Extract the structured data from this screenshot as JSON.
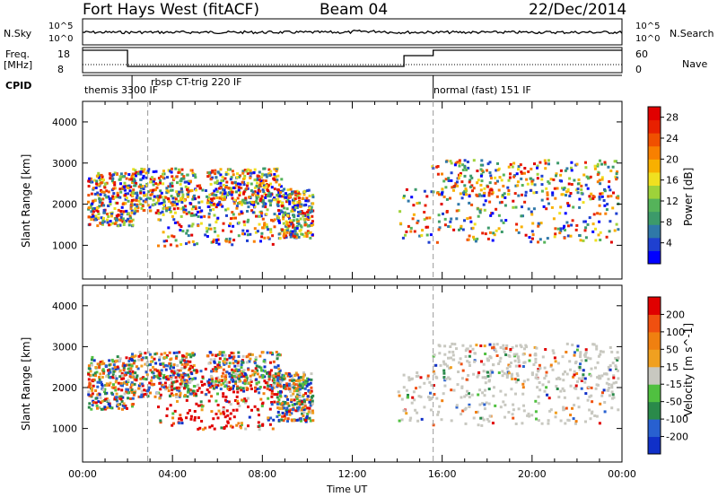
{
  "header": {
    "station": "Fort Hays West (fitACF)",
    "beam": "Beam 04",
    "date": "22/Dec/2014"
  },
  "panels": {
    "nsky_label": "N.Sky",
    "nsearch_label": "N.Search",
    "freq_label_line1": "Freq.",
    "freq_label_line2": "[MHz]",
    "nave_label": "Nave",
    "cpid_label": "CPID",
    "nsky_ticks": [
      "10^5",
      "10^0"
    ],
    "nsearch_ticks": [
      "10^5",
      "10^0"
    ],
    "freq_ticks": [
      "18",
      "8"
    ],
    "nave_ticks": [
      "60",
      "0"
    ]
  },
  "cpid_segments": [
    {
      "start_h": 0.0,
      "end_h": 2.2,
      "label": "themis 3300 IF"
    },
    {
      "start_h": 2.2,
      "end_h": 15.6,
      "label": "rbsp CT-trig 220 IF"
    },
    {
      "start_h": 15.6,
      "end_h": 24.0,
      "label": "normal (fast) 151 IF"
    }
  ],
  "chart_data": [
    {
      "type": "heatmap",
      "title": "",
      "quantity": "Power",
      "ylabel": "Slant Range [km]",
      "xlabel": "",
      "x_range_hours": [
        0,
        24
      ],
      "ylim": [
        180,
        4500
      ],
      "y_ticks": [
        1000,
        2000,
        3000,
        4000
      ],
      "colorbar": {
        "label": "Power [dB]",
        "ticks": [
          "4",
          "8",
          "12",
          "16",
          "20",
          "24",
          "28"
        ],
        "range": [
          0,
          30
        ],
        "colors": [
          "#0000ff",
          "#1f40d0",
          "#2f78a8",
          "#3c9a6a",
          "#55b35a",
          "#9ed23a",
          "#f0e020",
          "#f8b000",
          "#f88000",
          "#f05000",
          "#e82000",
          "#e00000"
        ]
      }
    },
    {
      "type": "heatmap",
      "title": "",
      "quantity": "Velocity",
      "ylabel": "Slant Range [km]",
      "xlabel": "Time UT",
      "x_range_hours": [
        0,
        24
      ],
      "x_ticks": [
        "00:00",
        "04:00",
        "08:00",
        "12:00",
        "16:00",
        "20:00",
        "00:00"
      ],
      "ylim": [
        180,
        4500
      ],
      "y_ticks": [
        1000,
        2000,
        3000,
        4000
      ],
      "colorbar": {
        "label": "Velocity [m s^-1]",
        "ticks": [
          "200",
          "100",
          "50",
          "15",
          "-15",
          "-50",
          "-100",
          "-200"
        ],
        "colors": [
          "#1030c8",
          "#2860d0",
          "#2a8a4a",
          "#50c040",
          "#c8c8c0",
          "#f0a020",
          "#f08010",
          "#f05010",
          "#e00000"
        ]
      }
    }
  ]
}
